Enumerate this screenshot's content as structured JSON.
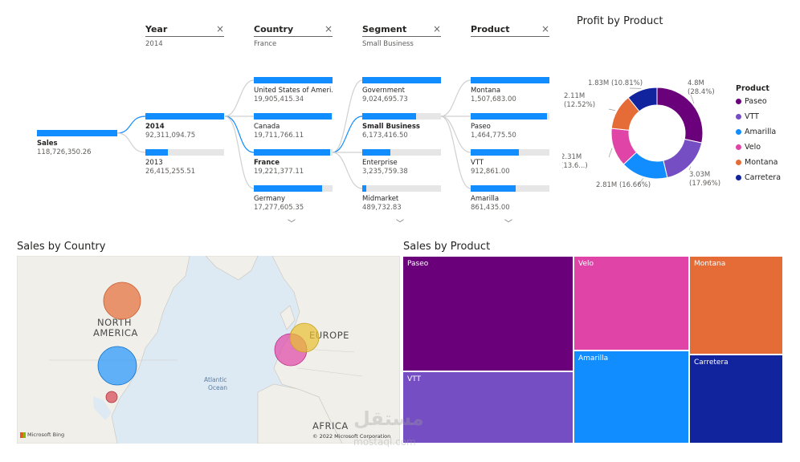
{
  "decomposition_tree": {
    "root": {
      "label": "Sales",
      "value": "118,726,350.26"
    },
    "levels": [
      {
        "header": "Year",
        "filter": "2014",
        "close": "×",
        "nodes": [
          {
            "name": "2014",
            "value": "92,311,094.75",
            "fraction": 1.0,
            "selected": true
          },
          {
            "name": "2013",
            "value": "26,415,255.51",
            "fraction": 0.29,
            "selected": false
          }
        ]
      },
      {
        "header": "Country",
        "filter": "France",
        "close": "×",
        "nodes": [
          {
            "name": "United States of Ameri...",
            "value": "19,905,415.34",
            "fraction": 1.0,
            "selected": false
          },
          {
            "name": "Canada",
            "value": "19,711,766.11",
            "fraction": 0.99,
            "selected": false
          },
          {
            "name": "France",
            "value": "19,221,377.11",
            "fraction": 0.97,
            "selected": true
          },
          {
            "name": "Germany",
            "value": "17,277,605.35",
            "fraction": 0.87,
            "selected": false
          }
        ]
      },
      {
        "header": "Segment",
        "filter": "Small Business",
        "close": "×",
        "nodes": [
          {
            "name": "Government",
            "value": "9,024,695.73",
            "fraction": 1.0,
            "selected": false
          },
          {
            "name": "Small Business",
            "value": "6,173,416.50",
            "fraction": 0.68,
            "selected": true
          },
          {
            "name": "Enterprise",
            "value": "3,235,759.38",
            "fraction": 0.36,
            "selected": false
          },
          {
            "name": "Midmarket",
            "value": "489,732.83",
            "fraction": 0.05,
            "selected": false
          }
        ]
      },
      {
        "header": "Product",
        "filter": "",
        "close": "×",
        "nodes": [
          {
            "name": "Montana",
            "value": "1,507,683.00",
            "fraction": 1.0,
            "selected": false
          },
          {
            "name": "Paseo",
            "value": "1,464,775.50",
            "fraction": 0.97,
            "selected": false
          },
          {
            "name": "VTT",
            "value": "912,861.00",
            "fraction": 0.61,
            "selected": false
          },
          {
            "name": "Amarilla",
            "value": "861,435.00",
            "fraction": 0.57,
            "selected": false
          }
        ]
      }
    ],
    "chevron": "﹀"
  },
  "chart_data": [
    {
      "type": "pie",
      "title": "Profit by Product",
      "legend_title": "Product",
      "legend_position": "right",
      "categories": [
        "Paseo",
        "VTT",
        "Amarilla",
        "Velo",
        "Montana",
        "Carretera"
      ],
      "values": [
        28.4,
        17.96,
        16.66,
        13.6,
        12.52,
        10.81
      ],
      "colors": [
        "#6b007b",
        "#744ec2",
        "#118dff",
        "#e044a7",
        "#e66c37",
        "#12239e"
      ],
      "labels": [
        {
          "v": "4.8M",
          "p": "(28.4%)"
        },
        {
          "v": "3.03M",
          "p": "(17.96%)"
        },
        {
          "v": "2.81M",
          "p": "(16.66%)"
        },
        {
          "v": "2.31M",
          "p": "(13.6...)"
        },
        {
          "v": "2.11M",
          "p": "(12.52%)"
        },
        {
          "v": "1.83M",
          "p": "(10.81%)"
        }
      ]
    },
    {
      "type": "treemap",
      "title": "Sales by Product",
      "categories": [
        "Paseo",
        "VTT",
        "Velo",
        "Amarilla",
        "Montana",
        "Carretera"
      ],
      "colors": [
        "#6b007b",
        "#744ec2",
        "#e044a7",
        "#118dff",
        "#e66c37",
        "#12239e"
      ]
    }
  ],
  "map": {
    "title": "Sales by Country",
    "labels": {
      "north_america_1": "NORTH",
      "north_america_2": "AMERICA",
      "europe": "EUROPE",
      "africa": "AFRICA",
      "ocean_1": "Atlantic",
      "ocean_2": "Ocean"
    },
    "attribution": "© 2022 Microsoft Corporation",
    "logo": "Microsoft Bing",
    "bubble_colors": {
      "canada": "#e66c37",
      "usa": "#118dff",
      "mexico": "#d64550",
      "france": "#e044a7",
      "germany": "#e8c12f"
    }
  },
  "watermark": {
    "arabic": "مستقل",
    "latin": "mostaql.com"
  }
}
